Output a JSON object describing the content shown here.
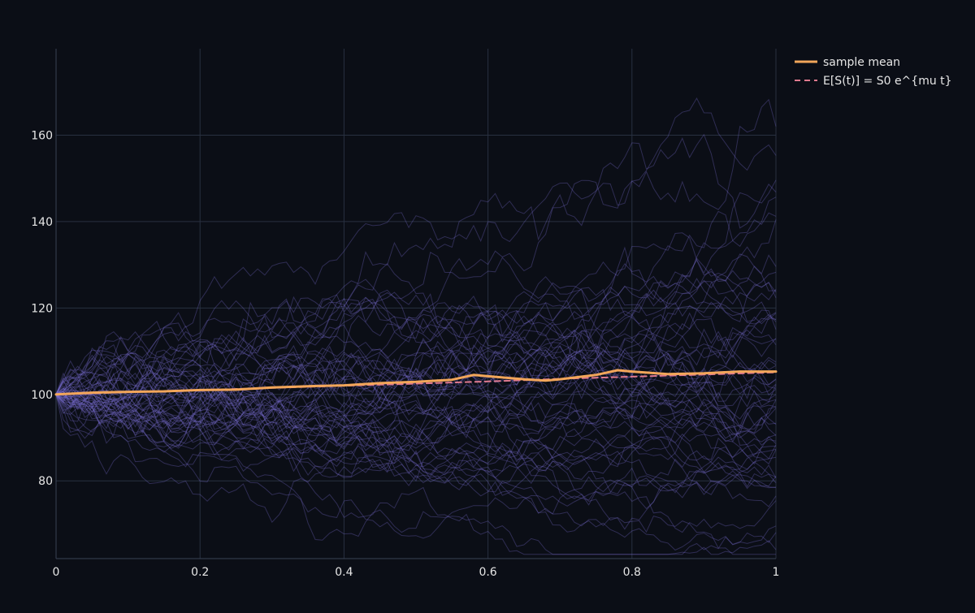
{
  "chart_data": {
    "type": "line",
    "title": "",
    "xlabel": "",
    "ylabel": "",
    "xlim": [
      0,
      1
    ],
    "ylim": [
      62,
      180
    ],
    "x_ticks": [
      0,
      0.2,
      0.4,
      0.6,
      0.8,
      1
    ],
    "x_tick_labels": [
      "0",
      "0.2",
      "0.4",
      "0.6",
      "0.8",
      "1"
    ],
    "y_ticks": [
      80,
      100,
      120,
      140,
      160
    ],
    "y_tick_labels": [
      "80",
      "100",
      "120",
      "140",
      "160"
    ],
    "grid": true,
    "legend_position": "top-right",
    "simulated_paths": {
      "count": 60,
      "start_value": 100,
      "steps": 100,
      "color": "#7b6fd6",
      "opacity": 0.32
    },
    "series": [
      {
        "name": "sample mean",
        "color": "#f2a65a",
        "style": "solid",
        "x": [
          0,
          0.05,
          0.1,
          0.15,
          0.2,
          0.25,
          0.3,
          0.35,
          0.4,
          0.45,
          0.5,
          0.55,
          0.58,
          0.6,
          0.65,
          0.68,
          0.7,
          0.75,
          0.78,
          0.8,
          0.85,
          0.9,
          0.95,
          1
        ],
        "values": [
          100,
          100.4,
          100.6,
          100.7,
          101,
          101.1,
          101.6,
          101.9,
          102.1,
          102.6,
          102.9,
          103.4,
          104.5,
          104.2,
          103.5,
          103.2,
          103.5,
          104.5,
          105.6,
          105.3,
          104.7,
          104.9,
          105.3,
          105.3
        ]
      },
      {
        "name": "E[S(t)] = S0 e^{mu t}",
        "color": "#e07a8f",
        "style": "dashed",
        "x": [
          0,
          0.1,
          0.2,
          0.3,
          0.4,
          0.5,
          0.6,
          0.7,
          0.8,
          0.9,
          1
        ],
        "values": [
          100,
          100.5,
          101,
          101.5,
          102,
          102.5,
          103,
          103.6,
          104.1,
          104.6,
          105.1
        ]
      }
    ]
  }
}
